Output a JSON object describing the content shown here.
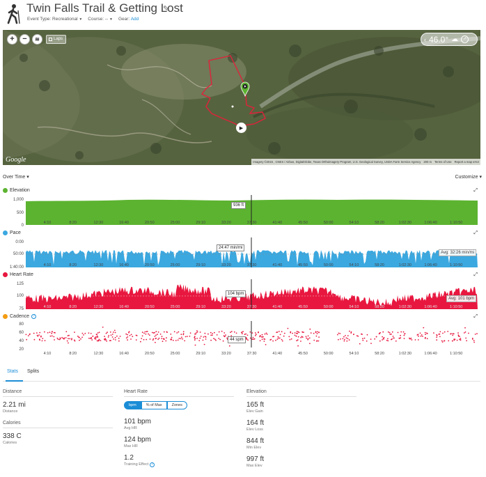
{
  "header": {
    "title": "Twin Falls Trail & Getting Lost",
    "event_type_label": "Event Type:",
    "event_type_value": "Recreational",
    "course_label": "Course:",
    "course_value": "--",
    "gear_label": "Gear:",
    "gear_value": "Add"
  },
  "map": {
    "laps_label": "Laps",
    "temperature": "46.0°",
    "google_label": "Google",
    "attribution": "Imagery ©2015 , CNES / Airbus, DigitalGlobe, Texas Orthoimagery Program, U.S. Geological Survey, USDA Farm Service Agency",
    "scale": "200 m",
    "terms": "Terms of Use",
    "report": "Report a map error"
  },
  "overtime": {
    "label": "Over Time",
    "customize_label": "Customize"
  },
  "charts": {
    "elevation": {
      "title": "Elevation",
      "color": "#5cb330",
      "y_ticks": [
        "1,000",
        "500",
        "0"
      ],
      "tooltip": "936 ft"
    },
    "pace": {
      "title": "Pace",
      "color": "#3ba8e0",
      "y_ticks": [
        "0:00",
        "50:00",
        "1:40:00"
      ],
      "tooltip": "24:47 min/mi",
      "avg": "Avg: 32:26 min/mi"
    },
    "heart_rate": {
      "title": "Heart Rate",
      "color": "#e8173f",
      "y_ticks": [
        "125",
        "100",
        "75"
      ],
      "tooltip": "104 bpm",
      "avg": "Avg: 101 bpm"
    },
    "cadence": {
      "title": "Cadence",
      "color": "#f39c12",
      "y_ticks": [
        "80",
        "60",
        "40",
        "20"
      ],
      "tooltip": "44 spm"
    },
    "x_ticks": [
      "4:10",
      "8:20",
      "12:30",
      "16:40",
      "20:50",
      "25:00",
      "29:10",
      "33:20",
      "37:30",
      "41:40",
      "45:50",
      "50:00",
      "54:10",
      "58:20",
      "1:02:30",
      "1:06:40",
      "1:10:50"
    ]
  },
  "tabs": {
    "stats": "Stats",
    "splits": "Splits"
  },
  "stats": {
    "distance": {
      "head": "Distance",
      "value": "2.21 mi",
      "label": "Distance"
    },
    "calories": {
      "head": "Calories",
      "value": "338 C",
      "label": "Calories"
    },
    "heart_rate": {
      "head": "Heart Rate",
      "seg": [
        "bpm",
        "% of Max",
        "Zones"
      ],
      "avg_value": "101 bpm",
      "avg_label": "Avg HR",
      "max_value": "124 bpm",
      "max_label": "Max HR",
      "te_value": "1.2",
      "te_label": "Training Effect"
    },
    "elevation": {
      "head": "Elevation",
      "gain_value": "165 ft",
      "gain_label": "Elev Gain",
      "loss_value": "164 ft",
      "loss_label": "Elev Loss",
      "min_value": "844 ft",
      "min_label": "Min Elev",
      "max_value": "997 ft",
      "max_label": "Max Elev"
    }
  }
}
